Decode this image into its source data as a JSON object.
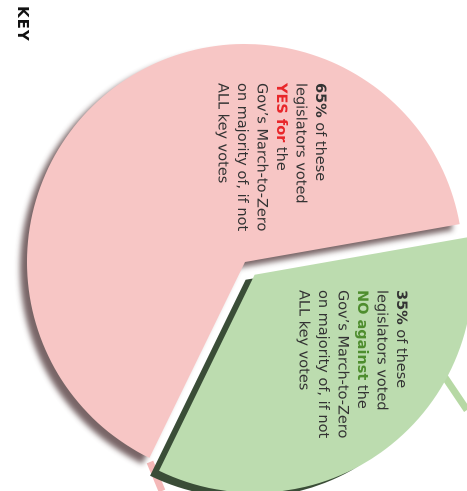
{
  "key_label": "KEY",
  "chart_data": {
    "type": "pie",
    "slices": [
      {
        "value": 65,
        "pct_label": "65%",
        "lines": [
          [
            {
              "text": "65%",
              "bold": true
            },
            {
              "text": " of these"
            }
          ],
          [
            {
              "text": "legislators voted"
            }
          ],
          [
            {
              "text": "YES for",
              "bold": true,
              "color": "#e8262a"
            },
            {
              "text": " the"
            }
          ],
          [
            {
              "text": "Gov’s March-to-Zero"
            }
          ],
          [
            {
              "text": "on majority of, if not"
            }
          ],
          [
            {
              "text": "ALL key votes"
            }
          ]
        ],
        "color": "#f7c6c5"
      },
      {
        "value": 35,
        "pct_label": "35%",
        "lines": [
          [
            {
              "text": "35%",
              "bold": true
            },
            {
              "text": " of these"
            }
          ],
          [
            {
              "text": "legislators voted"
            }
          ],
          [
            {
              "text": "NO against",
              "bold": true,
              "color": "#4e8d2e"
            },
            {
              "text": " the"
            }
          ],
          [
            {
              "text": "Gov’s March-to-Zero"
            }
          ],
          [
            {
              "text": "on majority of, if not"
            }
          ],
          [
            {
              "text": "ALL key votes"
            }
          ]
        ],
        "color": "#bcdcaf"
      }
    ]
  }
}
